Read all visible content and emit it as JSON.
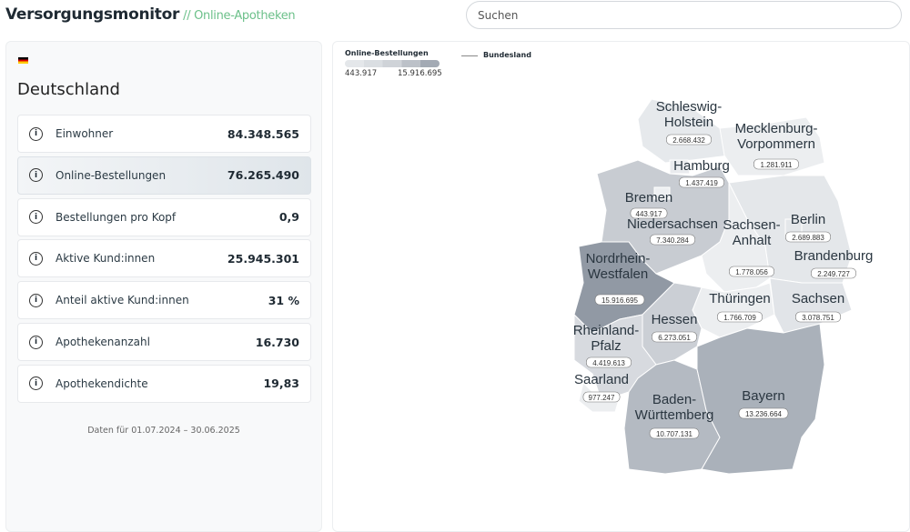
{
  "header": {
    "title": "Versorgungsmonitor",
    "subtitle": "// Online-Apotheken",
    "search_placeholder": "Suchen"
  },
  "panel": {
    "flag": "de-flag",
    "country": "Deutschland",
    "metrics": [
      {
        "label": "Einwohner",
        "value": "84.348.565"
      },
      {
        "label": "Online-Bestellungen",
        "value": "76.265.490",
        "selected": true
      },
      {
        "label": "Bestellungen pro Kopf",
        "value": "0,9"
      },
      {
        "label": "Aktive Kund:innen",
        "value": "25.945.301"
      },
      {
        "label": "Anteil aktive Kund:innen",
        "value": "31 %"
      },
      {
        "label": "Apothekenanzahl",
        "value": "16.730"
      },
      {
        "label": "Apothekendichte",
        "value": "19,83"
      }
    ],
    "footer": "Daten für 01.07.2024 – 30.06.2025"
  },
  "legend": {
    "title": "Online-Bestellungen",
    "min": "443.917",
    "max": "15.916.695",
    "boundary_label": "Bundesland",
    "colors": [
      "#e4e7ea",
      "#a3aab4"
    ]
  },
  "map": {
    "states": [
      {
        "id": "SH",
        "name": [
          "Schleswig-",
          "Holstein"
        ],
        "value": "2.668.432",
        "color": "#e6e9ec"
      },
      {
        "id": "HH",
        "name": [
          "Hamburg"
        ],
        "value": "1.437.419",
        "color": "#e9ebee"
      },
      {
        "id": "MV",
        "name": [
          "Mecklenburg-",
          "Vorpommern"
        ],
        "value": "1.281.911",
        "color": "#eceef0"
      },
      {
        "id": "HB",
        "name": [
          "Bremen"
        ],
        "value": "443.917",
        "color": "#eef0f2"
      },
      {
        "id": "NI",
        "name": [
          "Niedersachsen"
        ],
        "value": "7.340.284",
        "color": "#c8ccd2"
      },
      {
        "id": "BE",
        "name": [
          "Berlin"
        ],
        "value": "2.689.883",
        "color": "#e4e7ea"
      },
      {
        "id": "ST",
        "name": [
          "Sachsen-",
          "Anhalt"
        ],
        "value": "1.778.056",
        "color": "#eceef0"
      },
      {
        "id": "BB",
        "name": [
          "Brandenburg"
        ],
        "value": "2.249.727",
        "color": "#e4e7ea"
      },
      {
        "id": "NW",
        "name": [
          "Nordrhein-",
          "Westfalen"
        ],
        "value": "15.916.695",
        "color": "#9199a4"
      },
      {
        "id": "TH",
        "name": [
          "Thüringen"
        ],
        "value": "1.766.709",
        "color": "#eceef0"
      },
      {
        "id": "SN",
        "name": [
          "Sachsen"
        ],
        "value": "3.078.751",
        "color": "#e1e4e8"
      },
      {
        "id": "HE",
        "name": [
          "Hessen"
        ],
        "value": "6.273.051",
        "color": "#cbcfd5"
      },
      {
        "id": "RP",
        "name": [
          "Rheinland-",
          "Pfalz"
        ],
        "value": "4.419.613",
        "color": "#d7dadf"
      },
      {
        "id": "SL",
        "name": [
          "Saarland"
        ],
        "value": "977.247",
        "color": "#eceef0"
      },
      {
        "id": "BW",
        "name": [
          "Baden-",
          "Württemberg"
        ],
        "value": "10.707.131",
        "color": "#b4bac2"
      },
      {
        "id": "BY",
        "name": [
          "Bayern"
        ],
        "value": "13.236.664",
        "color": "#aab1ba"
      }
    ]
  }
}
